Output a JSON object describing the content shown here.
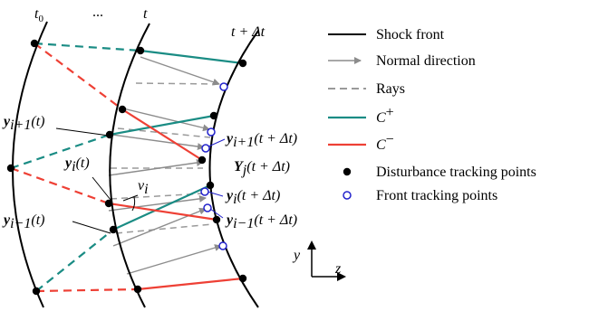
{
  "time_labels": {
    "t0_main": "t",
    "t0_sub": "0",
    "dots": "...",
    "t": "t",
    "t_dt": "t + Δt"
  },
  "point_labels": {
    "y_ip1": {
      "bold": "y",
      "sub": "i+1",
      "arg": "(t)"
    },
    "y_i": {
      "bold": "y",
      "sub": "i",
      "arg": "(t)"
    },
    "y_im1": {
      "bold": "y",
      "sub": "i−1",
      "arg": "(t)"
    },
    "y_ip1_dt": {
      "bold": "y",
      "sub": "i+1",
      "arg": "(t + Δt)"
    },
    "Y_j_dt": {
      "bold": "Y",
      "sub": "j",
      "arg": "(t + Δt)"
    },
    "y_i_dt": {
      "bold": "y",
      "sub": "i",
      "arg": "(t + Δt)"
    },
    "y_im1_dt": {
      "bold": "y",
      "sub": "i−1",
      "arg": "(t + Δt)"
    },
    "nu_main": "ν",
    "nu_sub": "i"
  },
  "axes": {
    "y": "y",
    "z": "z"
  },
  "legend": [
    {
      "label": "Shock front",
      "symbol": "solid-line",
      "color": "#000000"
    },
    {
      "label": "Normal direction",
      "symbol": "arrow",
      "color": "#8c8c8c"
    },
    {
      "label": "Rays",
      "symbol": "dashed-line",
      "color": "#9a9a9a"
    },
    {
      "label_main": "C",
      "label_sup": "+",
      "symbol": "solid-line",
      "color": "#1a8c84"
    },
    {
      "label_main": "C",
      "label_sup": "−",
      "symbol": "solid-line",
      "color": "#ee4035"
    },
    {
      "label": "Disturbance tracking points",
      "symbol": "filled-dot",
      "color": "#000000"
    },
    {
      "label": "Front tracking points",
      "symbol": "open-circle",
      "color": "#2222cc"
    }
  ],
  "colors": {
    "front": "#000000",
    "normal": "#8c8c8c",
    "ray": "#9a9a9a",
    "c_plus": "#1a8c84",
    "c_minus": "#ee4035",
    "front_point": "#2222cc"
  }
}
